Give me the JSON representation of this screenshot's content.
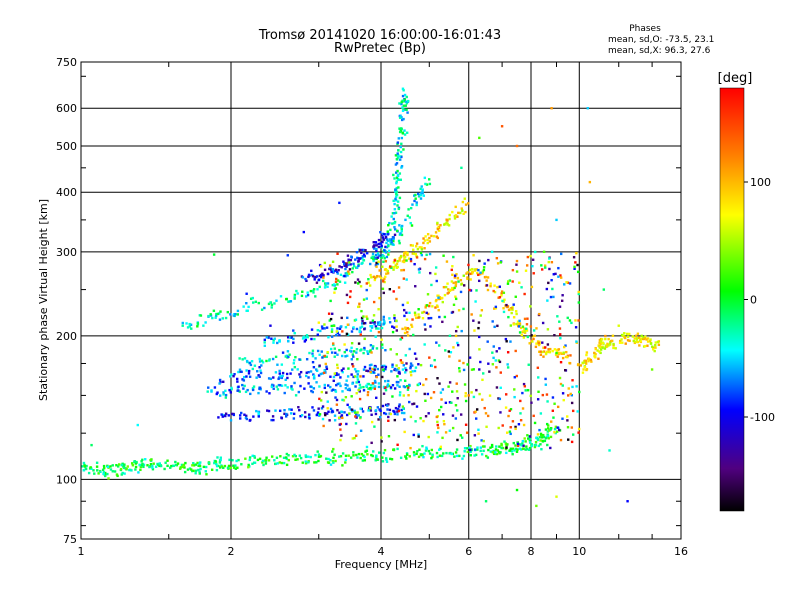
{
  "chart_data": {
    "type": "scatter",
    "title": "Tromsø 20141020 16:00:00-16:01:43",
    "subtitle": "RwPretec (Bp)",
    "xlabel": "Frequency [MHz]",
    "ylabel": "Stationary phase Virtual Height [km]",
    "x_scale": "log",
    "y_scale": "log",
    "xlim": [
      1,
      16
    ],
    "ylim": [
      75,
      750
    ],
    "x_ticks": [
      1,
      2,
      4,
      6,
      8,
      10,
      16
    ],
    "x_tick_labels": [
      "1",
      "2",
      "4",
      "6",
      "8",
      "10",
      "16"
    ],
    "y_ticks": [
      75,
      100,
      200,
      300,
      400,
      500,
      600,
      750
    ],
    "y_tick_labels": [
      "75",
      "100",
      "200",
      "300",
      "400",
      "500",
      "600",
      "750"
    ],
    "grid": true,
    "color_by": "phase (deg)",
    "stats": {
      "title": "Phases",
      "line_o": "mean, sd,O: -73.5, 23.1",
      "line_x": "mean, sd,X:  96.3, 27.6"
    },
    "colorbar": {
      "label": "[deg]",
      "range": [
        -180,
        180
      ],
      "ticks": [
        100,
        0,
        -100
      ],
      "tick_labels": [
        "100",
        "0",
        "-100"
      ]
    },
    "traces": [
      {
        "name": "bottom-trace",
        "points": [
          [
            1.0,
            106
          ],
          [
            1.1,
            104
          ],
          [
            1.2,
            105
          ],
          [
            1.3,
            107
          ],
          [
            1.4,
            108
          ],
          [
            1.55,
            107
          ],
          [
            1.7,
            106
          ],
          [
            1.85,
            107
          ],
          [
            2.0,
            108
          ],
          [
            2.3,
            109
          ],
          [
            2.6,
            110
          ],
          [
            2.9,
            110
          ],
          [
            3.3,
            111
          ],
          [
            3.8,
            112
          ],
          [
            4.3,
            113
          ],
          [
            5.0,
            114
          ],
          [
            5.8,
            113
          ],
          [
            6.5,
            115
          ],
          [
            7.0,
            116
          ],
          [
            7.5,
            117
          ],
          [
            8.0,
            119
          ],
          [
            8.5,
            122
          ],
          [
            9.0,
            128
          ]
        ],
        "phase": -10
      },
      {
        "name": "trace-140",
        "points": [
          [
            1.9,
            135
          ],
          [
            2.2,
            136
          ],
          [
            2.6,
            137
          ],
          [
            3.0,
            138
          ],
          [
            3.5,
            139
          ],
          [
            4.0,
            140
          ],
          [
            4.5,
            140
          ]
        ],
        "phase": -95
      },
      {
        "name": "trace-155",
        "points": [
          [
            1.8,
            153
          ],
          [
            2.1,
            154
          ],
          [
            2.5,
            155
          ],
          [
            3.0,
            156
          ],
          [
            3.5,
            157
          ],
          [
            4.0,
            158
          ],
          [
            4.6,
            158
          ]
        ],
        "phase": -65
      },
      {
        "name": "trace-165",
        "points": [
          [
            1.9,
            164
          ],
          [
            2.3,
            165
          ],
          [
            2.7,
            166
          ],
          [
            3.2,
            167
          ],
          [
            3.7,
            168
          ],
          [
            4.2,
            170
          ],
          [
            4.8,
            172
          ]
        ],
        "phase": -85
      },
      {
        "name": "trace-180",
        "points": [
          [
            2.1,
            175
          ],
          [
            2.5,
            178
          ],
          [
            3.0,
            182
          ],
          [
            3.5,
            186
          ],
          [
            4.0,
            190
          ]
        ],
        "phase": -50
      },
      {
        "name": "trace-200",
        "points": [
          [
            2.3,
            195
          ],
          [
            2.8,
            200
          ],
          [
            3.3,
            205
          ],
          [
            3.8,
            210
          ],
          [
            4.3,
            214
          ]
        ],
        "phase": -70
      },
      {
        "name": "trace-230",
        "points": [
          [
            1.6,
            212
          ],
          [
            1.9,
            220
          ],
          [
            2.3,
            232
          ],
          [
            2.8,
            245
          ],
          [
            3.3,
            262
          ],
          [
            3.8,
            290
          ],
          [
            4.3,
            320
          ],
          [
            4.7,
            380
          ],
          [
            5.0,
            430
          ]
        ],
        "phase": -40
      },
      {
        "name": "trace-255",
        "points": [
          [
            2.8,
            262
          ],
          [
            3.1,
            272
          ],
          [
            3.4,
            284
          ],
          [
            3.7,
            298
          ],
          [
            4.0,
            312
          ],
          [
            4.2,
            330
          ]
        ],
        "phase": -105
      },
      {
        "name": "trace-hook-4",
        "points": [
          [
            4.0,
            280
          ],
          [
            4.2,
            330
          ],
          [
            4.3,
            390
          ],
          [
            4.35,
            450
          ],
          [
            4.4,
            520
          ],
          [
            4.45,
            600
          ],
          [
            4.5,
            650
          ]
        ],
        "phase": -45
      },
      {
        "name": "trace-upper-o",
        "points": [
          [
            3.8,
            260
          ],
          [
            4.2,
            280
          ],
          [
            4.6,
            300
          ],
          [
            5.0,
            320
          ],
          [
            5.5,
            350
          ],
          [
            6.0,
            380
          ]
        ],
        "phase": 80
      },
      {
        "name": "trace-x-mode",
        "points": [
          [
            4.4,
            205
          ],
          [
            5.0,
            230
          ],
          [
            5.6,
            255
          ],
          [
            6.2,
            275
          ],
          [
            7.0,
            240
          ],
          [
            7.6,
            210
          ],
          [
            8.2,
            190
          ],
          [
            8.8,
            185
          ],
          [
            9.5,
            182
          ]
        ],
        "phase": 90
      },
      {
        "name": "trace-right",
        "points": [
          [
            10.0,
            170
          ],
          [
            10.5,
            180
          ],
          [
            11.0,
            190
          ],
          [
            11.5,
            195
          ],
          [
            12.5,
            200
          ],
          [
            13.5,
            195
          ],
          [
            14.5,
            190
          ]
        ],
        "phase": 75
      }
    ],
    "scatter_points": [
      [
        6.5,
        90,
        -20
      ],
      [
        7.5,
        95,
        0
      ],
      [
        8.2,
        88,
        30
      ],
      [
        9.0,
        92,
        60
      ],
      [
        10.2,
        170,
        80
      ],
      [
        11.5,
        115,
        -40
      ],
      [
        12.5,
        90,
        -100
      ],
      [
        13.0,
        200,
        100
      ],
      [
        6.8,
        230,
        -90
      ],
      [
        7.2,
        260,
        40
      ],
      [
        5.0,
        180,
        150
      ],
      [
        5.5,
        200,
        -30
      ],
      [
        6.0,
        150,
        120
      ],
      [
        6.3,
        170,
        -120
      ],
      [
        5.2,
        130,
        170
      ],
      [
        4.5,
        175,
        -140
      ],
      [
        3.6,
        230,
        60
      ],
      [
        2.6,
        295,
        -90
      ],
      [
        2.8,
        330,
        -100
      ],
      [
        3.3,
        380,
        -95
      ],
      [
        9.5,
        150,
        140
      ],
      [
        8.5,
        300,
        20
      ],
      [
        9.0,
        350,
        -60
      ],
      [
        10.5,
        420,
        100
      ],
      [
        11.2,
        250,
        -20
      ],
      [
        12.0,
        210,
        60
      ],
      [
        7.5,
        500,
        130
      ],
      [
        8.8,
        600,
        110
      ],
      [
        10.4,
        600,
        -60
      ],
      [
        5.8,
        450,
        -30
      ],
      [
        6.3,
        520,
        20
      ],
      [
        7.0,
        550,
        140
      ],
      [
        3.5,
        140,
        -160
      ],
      [
        2.4,
        210,
        -110
      ],
      [
        1.85,
        296,
        -10
      ],
      [
        2.15,
        245,
        -95
      ],
      [
        1.6,
        210,
        -30
      ],
      [
        1.3,
        130,
        -50
      ],
      [
        1.05,
        118,
        -20
      ],
      [
        14.0,
        170,
        30
      ]
    ]
  }
}
